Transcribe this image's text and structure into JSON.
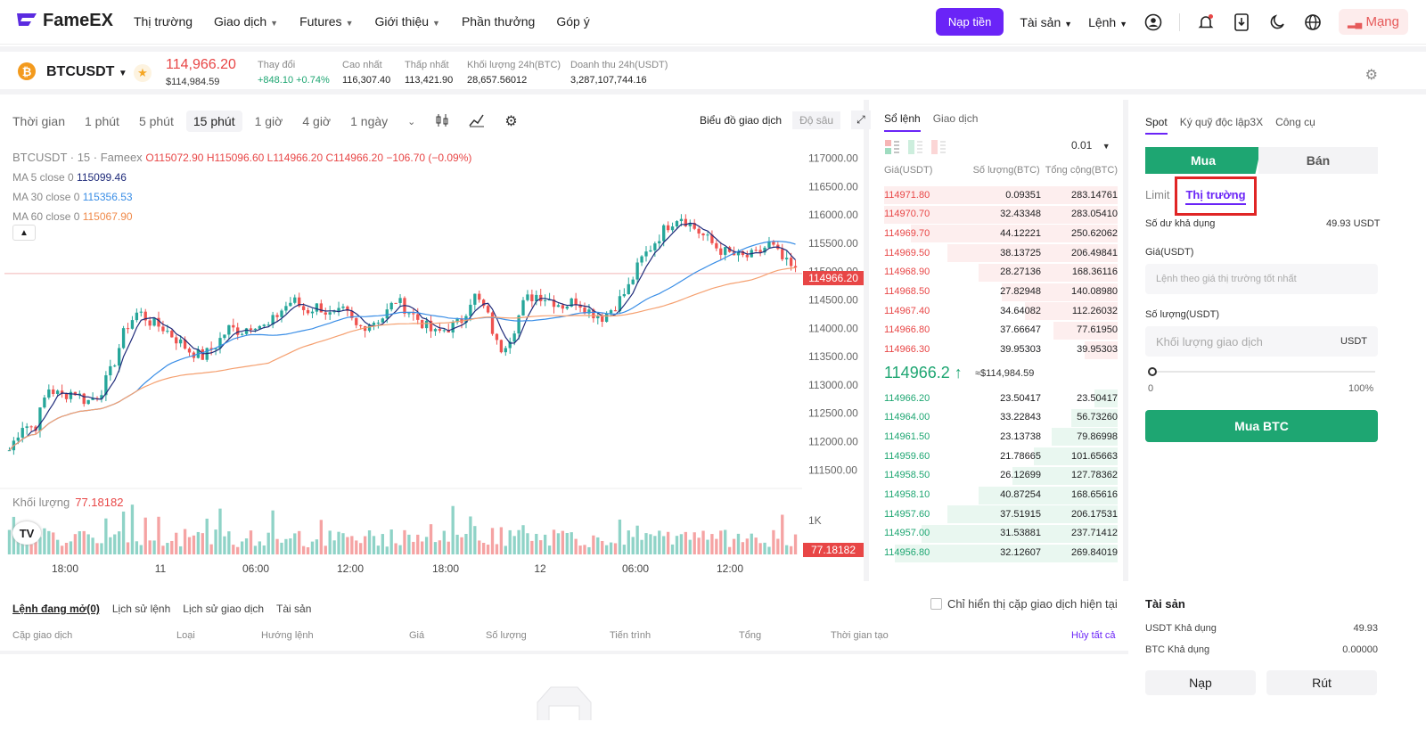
{
  "nav": {
    "brand": "FameEX",
    "items": [
      {
        "label": "Thị trường",
        "dropdown": false
      },
      {
        "label": "Giao dịch",
        "dropdown": true
      },
      {
        "label": "Futures",
        "dropdown": true
      },
      {
        "label": "Giới thiệu",
        "dropdown": true
      },
      {
        "label": "Phần thưởng",
        "dropdown": false
      },
      {
        "label": "Góp ý",
        "dropdown": false
      }
    ],
    "deposit_label": "Nạp tiền",
    "assets_label": "Tài sản",
    "orders_label": "Lệnh",
    "network_label": "Mạng"
  },
  "ticker": {
    "pair": "BTCUSDT",
    "last_price": "114,966.20",
    "last_price_usd": "$114,984.59",
    "change_label": "Thay đổi",
    "change_value": "+848.10 +0.74%",
    "high_label": "Cao nhất",
    "high_value": "116,307.40",
    "low_label": "Thấp nhất",
    "low_value": "113,421.90",
    "vol_label": "Khối lượng 24h(BTC)",
    "vol_value": "28,657.56012",
    "turnover_label": "Doanh thu 24h(USDT)",
    "turnover_value": "3,287,107,744.16"
  },
  "chart_toolbar": {
    "timeframes": [
      "Thời gian",
      "1 phút",
      "5 phút",
      "15 phút",
      "1 giờ",
      "4 giờ",
      "1 ngày"
    ],
    "active_index": 3,
    "view_trading": "Biểu đồ giao dịch",
    "view_depth": "Độ sâu"
  },
  "chart_legend": {
    "title": "BTCUSDT · 15 · Fameex",
    "ohlc": "O115072.90 H115096.60 L114966.20 C114966.20 −106.70 (−0.09%)",
    "ma5_label": "MA 5 close 0",
    "ma5_value": "115099.46",
    "ma30_label": "MA 30 close 0",
    "ma30_value": "115356.53",
    "ma60_label": "MA 60 close 0",
    "ma60_value": "115067.90",
    "volume_label": "Khối lượng",
    "volume_value": "77.18182"
  },
  "chart_data": {
    "type": "candlestick",
    "y_ticks": [
      "117000.00",
      "116500.00",
      "116000.00",
      "115500.00",
      "115000.00",
      "114500.00",
      "114000.00",
      "113500.00",
      "113000.00",
      "112500.00",
      "112000.00",
      "111500.00"
    ],
    "ylim": [
      111300,
      117150
    ],
    "x_ticks": [
      "18:00",
      "11",
      "06:00",
      "12:00",
      "18:00",
      "12",
      "06:00",
      "12:00"
    ],
    "current_price": "114966.20",
    "volume_tick": "1K",
    "volume_current": "77.18182",
    "close_path": [
      111850,
      112300,
      112250,
      112950,
      112800,
      112900,
      112700,
      112850,
      113300,
      114000,
      114300,
      114100,
      114000,
      113800,
      113600,
      113500,
      113700,
      114000,
      113950,
      114100,
      114000,
      114300,
      114500,
      114300,
      114400,
      114200,
      114300,
      114000,
      114100,
      114200,
      114500,
      114300,
      114100,
      113900,
      114000,
      114100,
      114600,
      114300,
      113600,
      113900,
      114500,
      114600,
      114500,
      114400,
      114500,
      114300,
      114200,
      114400,
      114700,
      115200,
      115500,
      115800,
      116000,
      115800,
      115600,
      115400,
      115300,
      115250,
      115300,
      115500,
      115200,
      115000
    ]
  },
  "orderbook": {
    "tab_active": "Sổ lệnh",
    "tab_other": "Giao dịch",
    "precision": "0.01",
    "headers": [
      "Giá(USDT)",
      "Số lượng(BTC)",
      "Tổng cộng(BTC)"
    ],
    "asks": [
      [
        "114971.80",
        "0.09351",
        "283.14761"
      ],
      [
        "114970.70",
        "32.43348",
        "283.05410"
      ],
      [
        "114969.70",
        "44.12221",
        "250.62062"
      ],
      [
        "114969.50",
        "38.13725",
        "206.49841"
      ],
      [
        "114968.90",
        "28.27136",
        "168.36116"
      ],
      [
        "114968.50",
        "27.82948",
        "140.08980"
      ],
      [
        "114967.40",
        "34.64082",
        "112.26032"
      ],
      [
        "114966.80",
        "37.66647",
        "77.61950"
      ],
      [
        "114966.30",
        "39.95303",
        "39.95303"
      ]
    ],
    "mid_price": "114966.2",
    "mid_price_usd": "≈$114,984.59",
    "bids": [
      [
        "114966.20",
        "23.50417",
        "23.50417"
      ],
      [
        "114964.00",
        "33.22843",
        "56.73260"
      ],
      [
        "114961.50",
        "23.13738",
        "79.86998"
      ],
      [
        "114959.60",
        "21.78665",
        "101.65663"
      ],
      [
        "114958.50",
        "26.12699",
        "127.78362"
      ],
      [
        "114958.10",
        "40.87254",
        "168.65616"
      ],
      [
        "114957.60",
        "37.51915",
        "206.17531"
      ],
      [
        "114957.00",
        "31.53881",
        "237.71412"
      ],
      [
        "114956.80",
        "32.12607",
        "269.84019"
      ]
    ]
  },
  "trade": {
    "tabs": [
      "Spot",
      "Ký quỹ độc lập3X",
      "Công cụ"
    ],
    "buy_label": "Mua",
    "sell_label": "Bán",
    "limit_label": "Limit",
    "market_label": "Thị trường",
    "available_label": "Số dư khả dụng",
    "available_value": "49.93 USDT",
    "price_label": "Giá(USDT)",
    "price_placeholder": "Lệnh theo giá thị trường tốt nhất",
    "amount_label": "Số lượng(USDT)",
    "amount_placeholder": "Khối lượng giao dịch",
    "amount_unit": "USDT",
    "slider_min": "0",
    "slider_max": "100%",
    "submit_label": "Mua BTC"
  },
  "orders": {
    "tabs": [
      "Lệnh đang mở(0)",
      "Lịch sử lệnh",
      "Lịch sử giao dịch",
      "Tài sản"
    ],
    "only_current": "Chỉ hiển thị cặp giao dịch hiện tại",
    "columns": [
      "Cặp giao dịch",
      "Loại",
      "Hướng lệnh",
      "Giá",
      "Số lượng",
      "Tiến trình",
      "Tổng",
      "Thời gian tạo"
    ],
    "cancel_all": "Hủy tất cả"
  },
  "assets": {
    "title": "Tài sản",
    "usdt_label": "USDT Khả dụng",
    "usdt_value": "49.93",
    "btc_label": "BTC Khả dụng",
    "btc_value": "0.00000",
    "deposit_label": "Nạp",
    "withdraw_label": "Rút"
  }
}
